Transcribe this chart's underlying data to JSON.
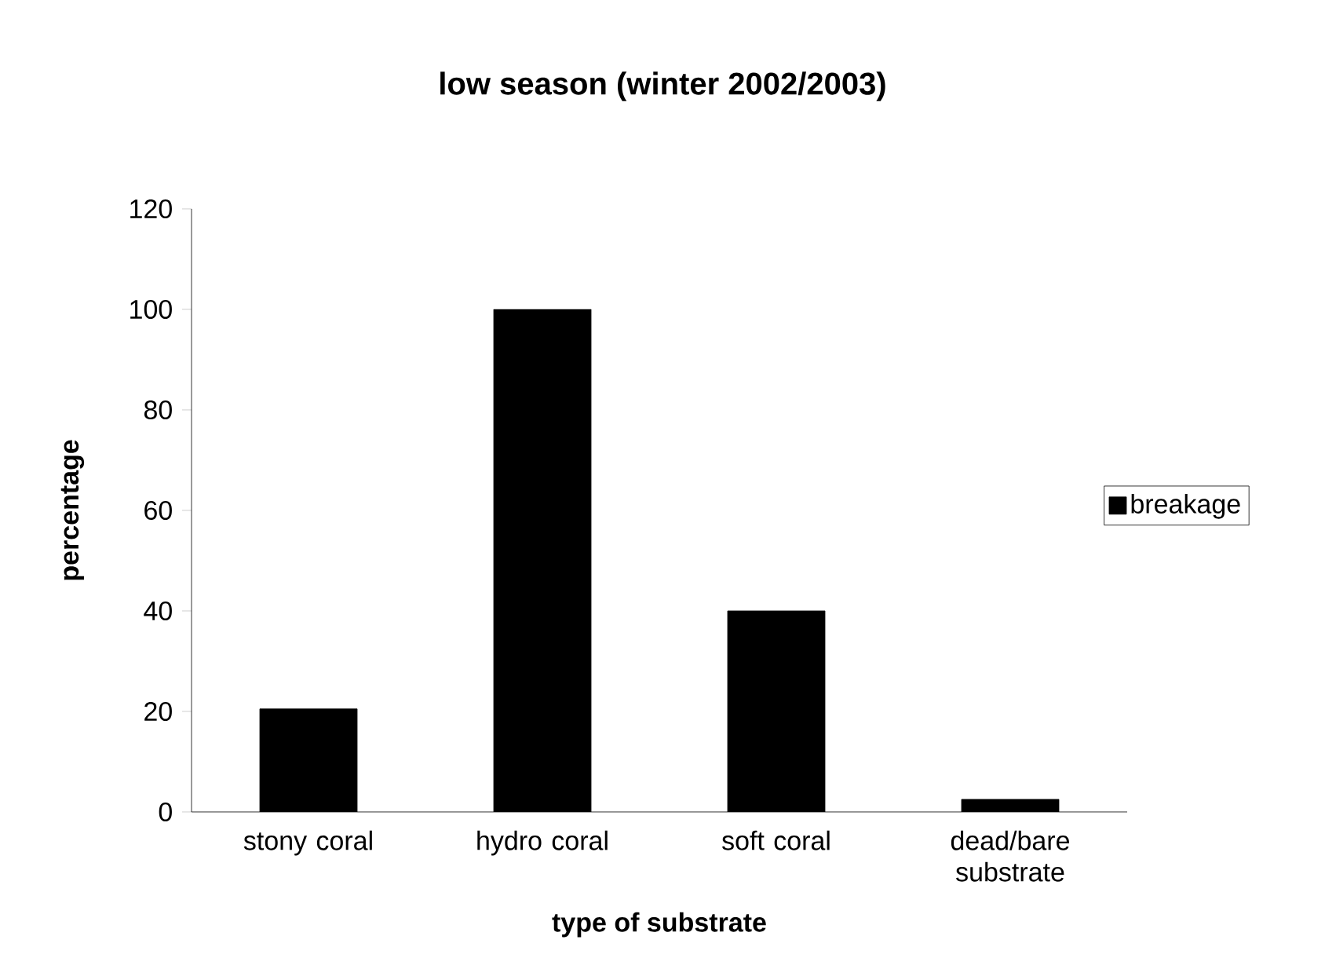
{
  "chart_data": {
    "type": "bar",
    "title": "low season (winter 2002/2003)",
    "xlabel": "type of substrate",
    "ylabel": "percentage",
    "categories": [
      "stony coral",
      "hydro coral",
      "soft coral",
      "dead/bare substrate"
    ],
    "series": [
      {
        "name": "breakage",
        "color": "#000000",
        "values": [
          20.5,
          100,
          40,
          2.5
        ]
      }
    ],
    "ylim": [
      0,
      120
    ],
    "yticks": [
      0,
      20,
      40,
      60,
      80,
      100,
      120
    ],
    "legend": "right"
  }
}
